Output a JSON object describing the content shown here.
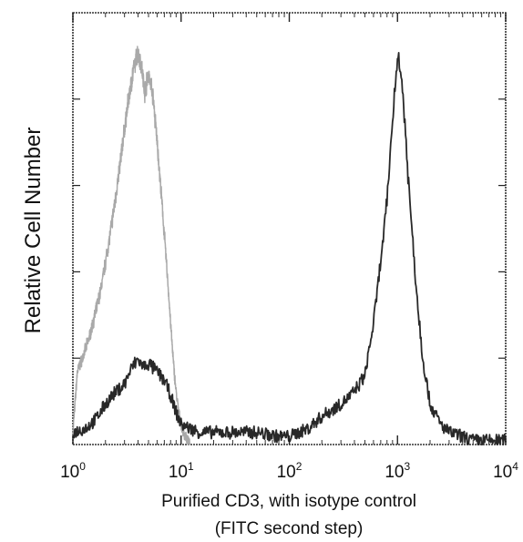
{
  "chart_data": {
    "type": "line",
    "title": "",
    "xlabel_line1": "Purified CD3, with isotype control",
    "xlabel_line2": "(FITC second step)",
    "ylabel": "Relative Cell Number",
    "x_scale": "log",
    "xlim": [
      1,
      10000
    ],
    "ylim": [
      0,
      100
    ],
    "x_ticks": [
      {
        "base": "10",
        "exp": "0",
        "value": 1
      },
      {
        "base": "10",
        "exp": "1",
        "value": 10
      },
      {
        "base": "10",
        "exp": "2",
        "value": 100
      },
      {
        "base": "10",
        "exp": "3",
        "value": 1000
      },
      {
        "base": "10",
        "exp": "4",
        "value": 10000
      }
    ],
    "grid": false,
    "legend": "none",
    "series": [
      {
        "color": "#9a9a9a",
        "x": [
          1.0,
          1.1,
          1.25,
          1.4,
          1.6,
          1.8,
          2.0,
          2.3,
          2.6,
          3.0,
          3.3,
          3.6,
          4.0,
          4.3,
          4.6,
          5.0,
          5.5,
          6.0,
          6.5,
          7.0,
          7.5,
          8.0,
          8.5,
          9.0,
          9.5,
          10.0,
          10.5,
          11.0,
          11.5,
          12.0
        ],
        "y": [
          3,
          18,
          22,
          26,
          32,
          38,
          45,
          55,
          65,
          78,
          86,
          92,
          97,
          94,
          87,
          92,
          86,
          75,
          63,
          52,
          41,
          30,
          20,
          13,
          8,
          5,
          3,
          2,
          1,
          0
        ]
      },
      {
        "color": "#1c1c1c",
        "x": [
          1.0,
          1.3,
          1.6,
          2.0,
          2.5,
          3.0,
          3.5,
          4.0,
          4.5,
          5.0,
          6.0,
          7.0,
          8.0,
          9.0,
          10.0,
          12.0,
          15.0,
          20.0,
          30.0,
          50.0,
          80.0,
          100.0,
          150.0,
          200.0,
          300.0,
          400.0,
          500.0,
          600.0,
          700.0,
          800.0,
          900.0,
          1000.0,
          1100.0,
          1200.0,
          1300.0,
          1500.0,
          1700.0,
          2000.0,
          2500.0,
          3000.0,
          4000.0,
          5000.0,
          7000.0,
          10000.0
        ],
        "y": [
          3,
          4,
          6,
          10,
          13,
          15,
          19,
          21,
          19,
          20,
          18,
          16,
          12,
          8,
          5,
          4,
          3,
          3,
          3,
          3,
          2,
          2,
          4,
          7,
          10,
          13,
          17,
          30,
          45,
          60,
          80,
          97,
          90,
          75,
          60,
          38,
          22,
          10,
          5,
          3,
          2,
          1,
          1,
          1
        ]
      }
    ]
  }
}
